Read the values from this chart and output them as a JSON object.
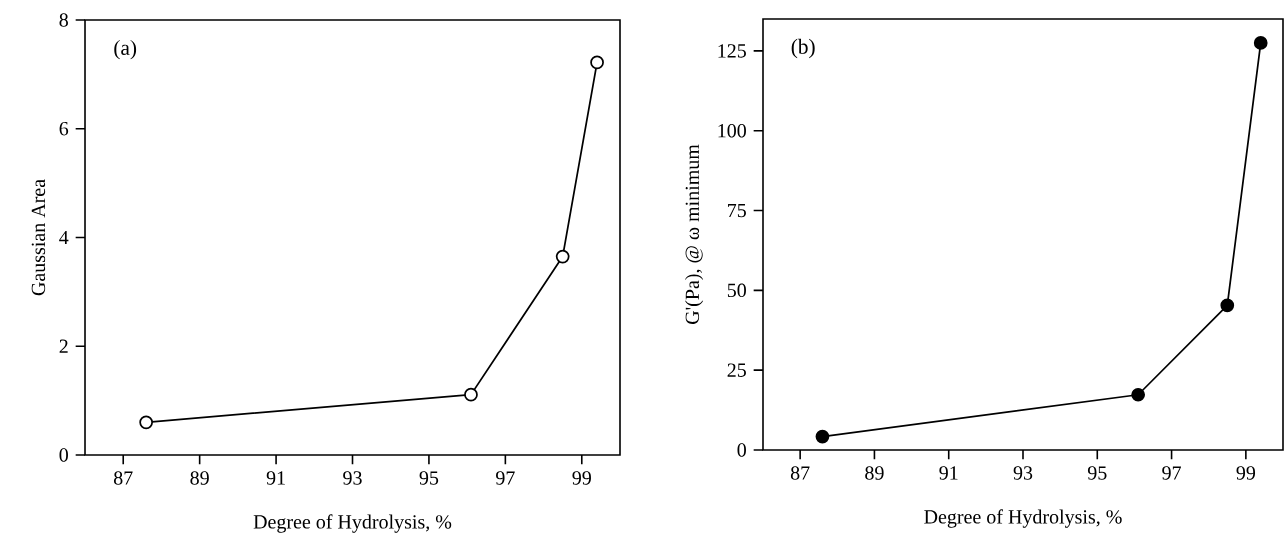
{
  "chart_data": [
    {
      "type": "line",
      "xlabel": "Degree of Hydrolysis, %",
      "ylabel": "Gaussian Area",
      "annotations": [
        "(a)"
      ],
      "x": [
        87.6,
        96.1,
        98.5,
        99.4
      ],
      "values": [
        0.6,
        1.11,
        3.65,
        7.22
      ],
      "color": "#000000",
      "marker": "circle",
      "line_style": "solid",
      "xlim": [
        86,
        100
      ],
      "xticks": [
        87,
        89,
        91,
        93,
        95,
        97,
        99
      ],
      "ylim": [
        0,
        8
      ],
      "yticks": [
        0,
        2,
        4,
        6,
        8
      ]
    },
    {
      "type": "line",
      "xlabel": "Degree of Hydrolysis, %",
      "ylabel": "G'(Pa),   @ ω minimum",
      "annotations": [
        "(b)"
      ],
      "x": [
        87.6,
        96.1,
        98.5,
        99.4
      ],
      "values": [
        4.2,
        17.3,
        45.3,
        127.5
      ],
      "color": "#000000",
      "marker": "circle",
      "line_style": "solid",
      "xlim": [
        86,
        100
      ],
      "xticks": [
        87,
        89,
        91,
        93,
        95,
        97,
        99
      ],
      "ylim": [
        0,
        135
      ],
      "yticks": [
        0,
        25,
        50,
        75,
        100,
        125
      ]
    }
  ]
}
